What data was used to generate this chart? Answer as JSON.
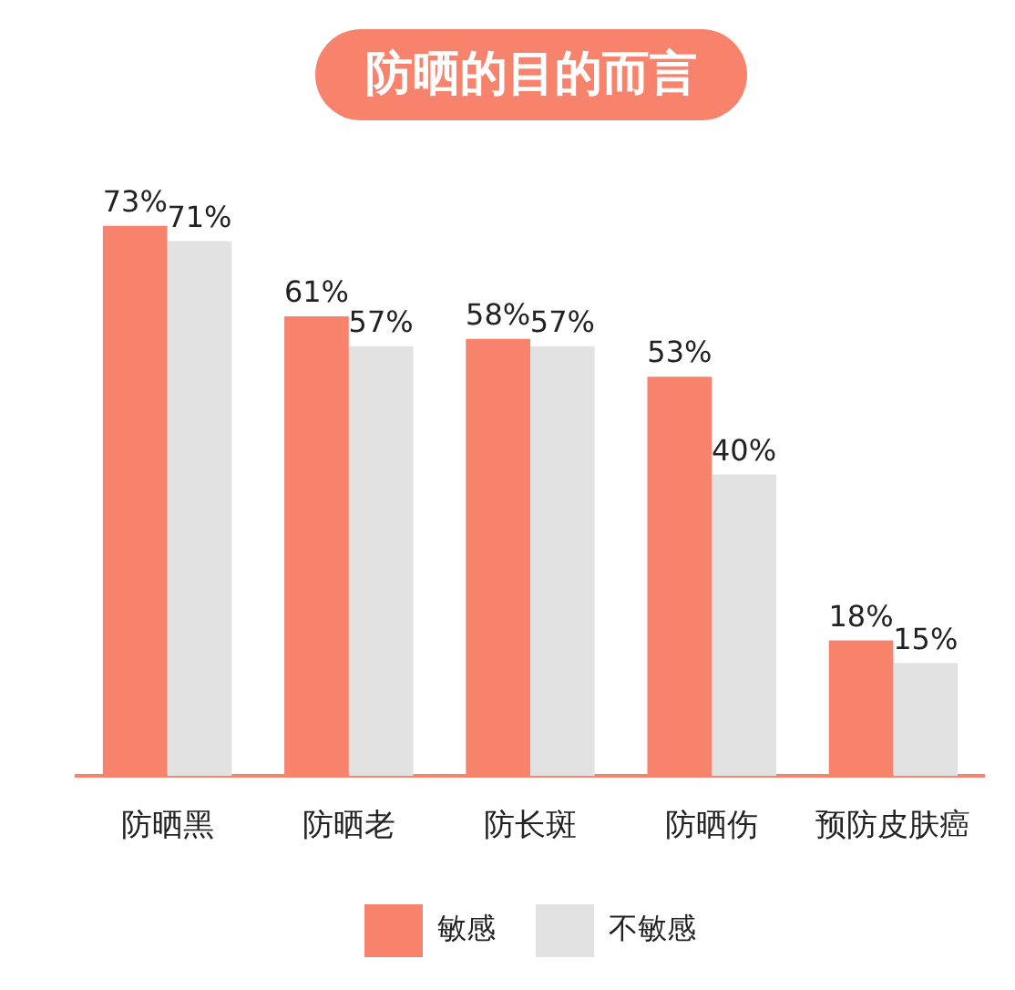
{
  "chart_data": {
    "type": "bar",
    "title": "防晒的目的而言",
    "categories": [
      "防晒黑",
      "防晒老",
      "防长斑",
      "防晒伤",
      "预防皮肤癌"
    ],
    "series": [
      {
        "name": "敏感",
        "color": "#f7836d",
        "values": [
          73,
          61,
          58,
          53,
          18
        ],
        "value_labels": [
          "73%",
          "61%",
          "58%",
          "53%",
          "18%"
        ]
      },
      {
        "name": "不敏感",
        "color": "#e2e2e2",
        "values": [
          71,
          57,
          57,
          40,
          15
        ],
        "value_labels": [
          "71%",
          "57%",
          "57%",
          "40%",
          "15%"
        ]
      }
    ],
    "legend": "bottom"
  }
}
